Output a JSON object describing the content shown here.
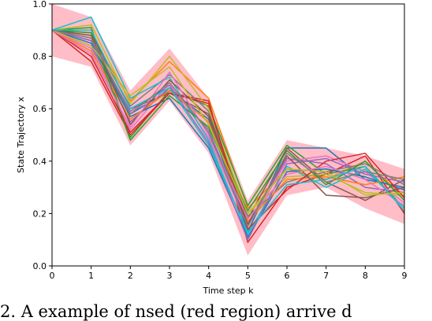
{
  "chart_data": {
    "type": "line",
    "xlabel": "Time step k",
    "ylabel": "State Trajectory x",
    "xlim": [
      0,
      9
    ],
    "ylim": [
      0,
      1.0
    ],
    "x_ticks": [
      "0",
      "1",
      "2",
      "3",
      "4",
      "5",
      "6",
      "7",
      "8",
      "9"
    ],
    "y_ticks": [
      "0.0",
      "0.2",
      "0.4",
      "0.6",
      "0.8",
      "1.0"
    ],
    "x": [
      0,
      1,
      2,
      3,
      4,
      5,
      6,
      7,
      8,
      9
    ],
    "grid": false,
    "band": {
      "color": "#ffb6c1",
      "upper": [
        1.0,
        0.95,
        0.67,
        0.83,
        0.64,
        0.25,
        0.48,
        0.45,
        0.42,
        0.37
      ],
      "lower": [
        0.8,
        0.76,
        0.46,
        0.63,
        0.43,
        0.04,
        0.27,
        0.3,
        0.22,
        0.16
      ]
    },
    "series": [
      {
        "color": "#1f77b4",
        "values": [
          0.9,
          0.86,
          0.58,
          0.67,
          0.56,
          0.13,
          0.45,
          0.45,
          0.33,
          0.3
        ]
      },
      {
        "color": "#ff7f0e",
        "values": [
          0.9,
          0.88,
          0.63,
          0.78,
          0.64,
          0.22,
          0.37,
          0.33,
          0.4,
          0.26
        ]
      },
      {
        "color": "#2ca02c",
        "values": [
          0.9,
          0.91,
          0.49,
          0.67,
          0.61,
          0.23,
          0.46,
          0.35,
          0.38,
          0.22
        ]
      },
      {
        "color": "#d62728",
        "values": [
          0.9,
          0.78,
          0.5,
          0.66,
          0.63,
          0.09,
          0.3,
          0.35,
          0.42,
          0.2
        ]
      },
      {
        "color": "#9467bd",
        "values": [
          0.9,
          0.84,
          0.55,
          0.68,
          0.52,
          0.16,
          0.41,
          0.39,
          0.3,
          0.28
        ]
      },
      {
        "color": "#8c564b",
        "values": [
          0.9,
          0.89,
          0.6,
          0.66,
          0.58,
          0.18,
          0.45,
          0.32,
          0.25,
          0.33
        ]
      },
      {
        "color": "#e377c2",
        "values": [
          0.9,
          0.83,
          0.52,
          0.7,
          0.49,
          0.15,
          0.4,
          0.42,
          0.36,
          0.24
        ]
      },
      {
        "color": "#7f7f7f",
        "values": [
          0.9,
          0.87,
          0.61,
          0.73,
          0.59,
          0.19,
          0.32,
          0.36,
          0.39,
          0.31
        ]
      },
      {
        "color": "#bcbd22",
        "values": [
          0.9,
          0.92,
          0.62,
          0.8,
          0.6,
          0.2,
          0.34,
          0.35,
          0.28,
          0.27
        ]
      },
      {
        "color": "#17becf",
        "values": [
          0.9,
          0.95,
          0.64,
          0.72,
          0.48,
          0.12,
          0.38,
          0.3,
          0.37,
          0.22
        ]
      },
      {
        "color": "#1f77b4",
        "values": [
          0.9,
          0.85,
          0.57,
          0.64,
          0.45,
          0.11,
          0.36,
          0.37,
          0.34,
          0.29
        ]
      },
      {
        "color": "#ff7f0e",
        "values": [
          0.9,
          0.82,
          0.56,
          0.67,
          0.55,
          0.17,
          0.33,
          0.34,
          0.31,
          0.34
        ]
      },
      {
        "color": "#2ca02c",
        "values": [
          0.9,
          0.89,
          0.48,
          0.65,
          0.53,
          0.21,
          0.44,
          0.31,
          0.4,
          0.25
        ]
      },
      {
        "color": "#d62728",
        "values": [
          0.9,
          0.8,
          0.51,
          0.66,
          0.62,
          0.14,
          0.29,
          0.4,
          0.43,
          0.26
        ]
      },
      {
        "color": "#9467bd",
        "values": [
          0.9,
          0.86,
          0.59,
          0.69,
          0.47,
          0.1,
          0.39,
          0.41,
          0.35,
          0.32
        ]
      },
      {
        "color": "#8c564b",
        "values": [
          0.9,
          0.88,
          0.54,
          0.71,
          0.57,
          0.16,
          0.42,
          0.27,
          0.26,
          0.3
        ]
      },
      {
        "color": "#e377c2",
        "values": [
          0.9,
          0.81,
          0.53,
          0.74,
          0.5,
          0.18,
          0.35,
          0.38,
          0.33,
          0.23
        ]
      },
      {
        "color": "#17becf",
        "values": [
          0.9,
          0.9,
          0.6,
          0.68,
          0.46,
          0.13,
          0.31,
          0.33,
          0.38,
          0.21
        ]
      },
      {
        "color": "#bcbd22",
        "values": [
          0.9,
          0.84,
          0.65,
          0.76,
          0.54,
          0.2,
          0.37,
          0.36,
          0.27,
          0.28
        ]
      },
      {
        "color": "#7f7f7f",
        "values": [
          0.9,
          0.87,
          0.58,
          0.7,
          0.51,
          0.15,
          0.43,
          0.32,
          0.36,
          0.33
        ]
      }
    ]
  },
  "caption": "2. A   example of   nsed   (red region)   arrive   d"
}
